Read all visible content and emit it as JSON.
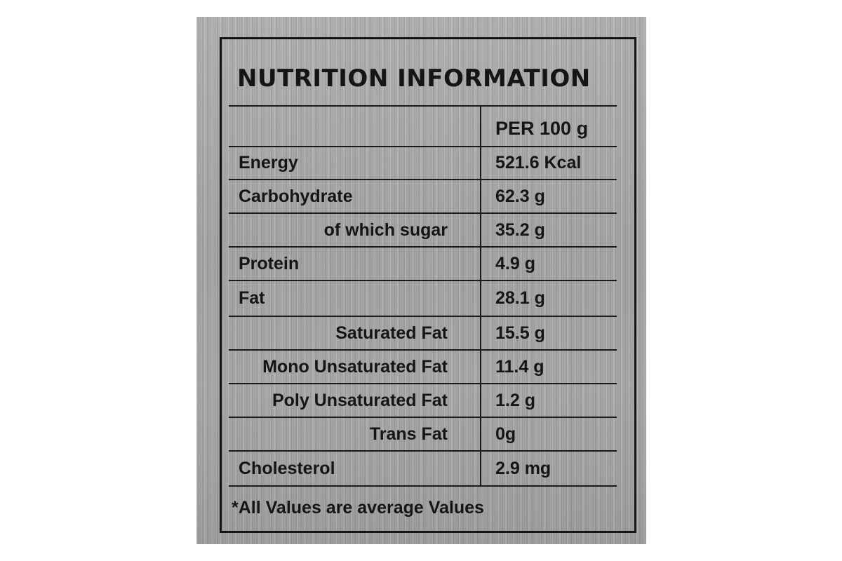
{
  "label": {
    "title": "NUTRITION INFORMATION",
    "column_header": "PER 100 g",
    "rows": [
      {
        "name": "Energy",
        "value": "521.6 Kcal",
        "align": "left"
      },
      {
        "name": "Carbohydrate",
        "value": "62.3 g",
        "align": "left"
      },
      {
        "name": "of which sugar",
        "value": "35.2 g",
        "align": "right"
      },
      {
        "name": "Protein",
        "value": "4.9 g",
        "align": "left"
      },
      {
        "name": "Fat",
        "value": "28.1 g",
        "align": "left"
      },
      {
        "name": "Saturated Fat",
        "value": "15.5 g",
        "align": "right"
      },
      {
        "name": "Mono Unsaturated Fat",
        "value": "11.4 g",
        "align": "right"
      },
      {
        "name": "Poly Unsaturated Fat",
        "value": "1.2 g",
        "align": "right"
      },
      {
        "name": "Trans Fat",
        "value": "0g",
        "align": "right"
      },
      {
        "name": "Cholesterol",
        "value": "2.9 mg",
        "align": "left"
      }
    ],
    "footnote": "*All Values are average Values"
  },
  "colors": {
    "ink": "#151515",
    "metal": "#a9a9a9",
    "background": "#ffffff"
  }
}
